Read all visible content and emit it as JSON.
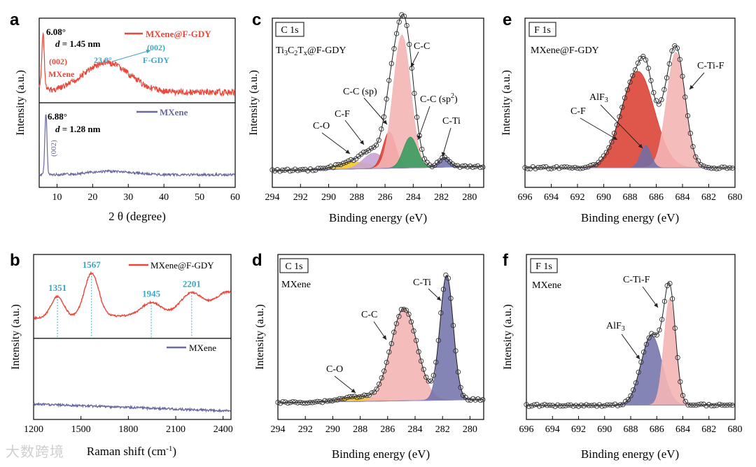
{
  "watermark": "大数跨境",
  "colors": {
    "red": "#e8473a",
    "purple": "#6a68a0",
    "cyan": "#3ba6c2",
    "pink": "#f4b5b5",
    "darkred": "#d93a2b",
    "green": "#2e9a5a",
    "yellow": "#f2c618",
    "lightpurple": "#c9a3d6",
    "violet": "#6f6fa8",
    "envelope": "#f0c78a",
    "baseline": "#8888cc"
  },
  "chart_data": [
    {
      "panel": "a",
      "type": "line",
      "xlabel": "2 θ (degree)",
      "ylabel": "Intensity (a.u.)",
      "xlim": [
        5,
        60
      ],
      "xticks": [
        "10",
        "20",
        "30",
        "40",
        "50",
        "60"
      ],
      "series": [
        {
          "name": "MXene@F-GDY",
          "peaks": [
            {
              "x": 6.08
            },
            {
              "x": 23.8
            }
          ]
        },
        {
          "name": "MXene",
          "peaks": [
            {
              "x": 6.88
            }
          ]
        }
      ],
      "annotations": {
        "top_peak_angle": "6.08°",
        "top_d_prefix": "d",
        "top_d_value": " = 1.45 nm",
        "top_plane": "(002)",
        "top_plane_label": "MXene",
        "gdy_angle": "23.8°",
        "gdy_plane": "(002)",
        "gdy_label": "F-GDY",
        "bot_peak_angle": "6.88°",
        "bot_d_prefix": "d",
        "bot_d_value": " = 1.28 nm",
        "bot_plane": "(002)"
      }
    },
    {
      "panel": "b",
      "type": "line",
      "xlabel": "Raman shift (cm",
      "xlabel_sup": "-1",
      "xlabel_end": ")",
      "ylabel": "Intensity (a.u.)",
      "xlim": [
        1200,
        2450
      ],
      "xticks": [
        "1200",
        "1500",
        "1800",
        "2100",
        "2400"
      ],
      "series": [
        {
          "name": "MXene@F-GDY"
        },
        {
          "name": "MXene"
        }
      ],
      "peak_labels": [
        "1351",
        "1567",
        "1945",
        "2201"
      ],
      "peak_positions": [
        1351,
        1567,
        1945,
        2201
      ]
    },
    {
      "panel": "c",
      "type": "line",
      "box_label": "C 1s",
      "sample": [
        "Ti",
        "3",
        "C",
        "2",
        "T",
        "x",
        "@F-GDY"
      ],
      "xlabel": "Binding energy (eV)",
      "ylabel": "Intensity (a.u.)",
      "xlim": [
        294,
        279
      ],
      "xticks": [
        "294",
        "292",
        "290",
        "288",
        "286",
        "284",
        "282",
        "280"
      ],
      "components": [
        {
          "name": "C-C",
          "center": 284.8
        },
        {
          "name": "C-C (sp)",
          "center": 285.7
        },
        {
          "name": "C-C (sp2)",
          "center": 284.2
        },
        {
          "name": "C-F",
          "center": 286.8
        },
        {
          "name": "C-O",
          "center": 288.2
        },
        {
          "name": "C-Ti",
          "center": 281.8
        }
      ],
      "labels": {
        "cc": "C-C",
        "csp": "C-C (sp)",
        "csp2_main": "C-C (sp",
        "csp2_sup": "2",
        "csp2_end": ")",
        "cf": "C-F",
        "co": "C-O",
        "cti": "C-Ti"
      }
    },
    {
      "panel": "d",
      "type": "line",
      "box_label": "C 1s",
      "sample": "MXene",
      "xlabel": "Binding energy (eV)",
      "ylabel": "Intensity (a.u.)",
      "xlim": [
        294,
        279
      ],
      "xticks": [
        "294",
        "292",
        "290",
        "288",
        "286",
        "284",
        "282",
        "280"
      ],
      "components": [
        {
          "name": "C-Ti",
          "center": 281.7
        },
        {
          "name": "C-C",
          "center": 284.8
        },
        {
          "name": "C-O",
          "center": 288.2
        }
      ],
      "labels": {
        "cti": "C-Ti",
        "cc": "C-C",
        "co": "C-O"
      }
    },
    {
      "panel": "e",
      "type": "line",
      "box_label": "F 1s",
      "sample": "MXene@F-GDY",
      "xlabel": "Binding energy (eV)",
      "ylabel": "Intensity (a.u.)",
      "xlim": [
        696,
        680
      ],
      "xticks": [
        "696",
        "694",
        "692",
        "690",
        "688",
        "686",
        "684",
        "682",
        "680"
      ],
      "components": [
        {
          "name": "C-Ti-F",
          "center": 684.5
        },
        {
          "name": "C-F",
          "center": 687.4
        },
        {
          "name": "AlF3",
          "center": 686.8
        }
      ],
      "labels": {
        "ctif": "C-Ti-F",
        "cf": "C-F",
        "alf_main": "AlF",
        "alf_sub": "3"
      }
    },
    {
      "panel": "f",
      "type": "line",
      "box_label": "F 1s",
      "sample": "MXene",
      "xlabel": "Binding energy (eV)",
      "ylabel": "Intensity (a.u.)",
      "xlim": [
        696,
        680
      ],
      "xticks": [
        "696",
        "694",
        "692",
        "690",
        "688",
        "686",
        "684",
        "682",
        "680"
      ],
      "components": [
        {
          "name": "C-Ti-F",
          "center": 685.0
        },
        {
          "name": "AlF3",
          "center": 686.4
        }
      ],
      "labels": {
        "ctif": "C-Ti-F",
        "alf_main": "AlF",
        "alf_sub": "3"
      }
    }
  ]
}
